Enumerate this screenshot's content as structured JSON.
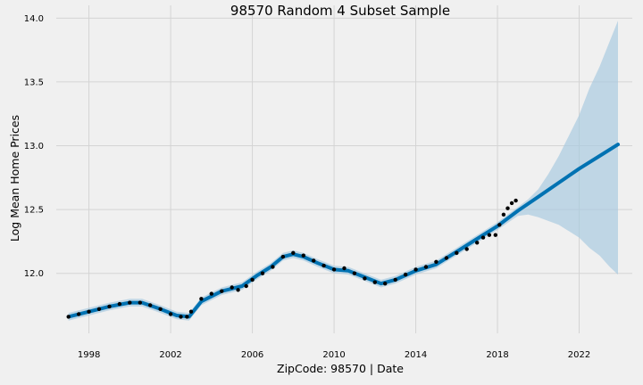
{
  "chart_data": {
    "type": "line",
    "title": "98570 Random 4 Subset Sample",
    "xlabel": "ZipCode: 98570 | Date",
    "ylabel": "Log Mean Home Prices",
    "xlim": [
      1996.4,
      2024.6
    ],
    "ylim": [
      11.53,
      14.1
    ],
    "x_ticks": [
      {
        "label": "1998",
        "value": 1998
      },
      {
        "label": "2002",
        "value": 2002
      },
      {
        "label": "2006",
        "value": 2006
      },
      {
        "label": "2010",
        "value": 2010
      },
      {
        "label": "2014",
        "value": 2014
      },
      {
        "label": "2018",
        "value": 2018
      },
      {
        "label": "2022",
        "value": 2022
      }
    ],
    "y_ticks": [
      {
        "label": "12.0",
        "value": 12.0
      },
      {
        "label": "12.5",
        "value": 12.5
      },
      {
        "label": "13.0",
        "value": 13.0
      },
      {
        "label": "13.5",
        "value": 13.5
      },
      {
        "label": "14.0",
        "value": 14.0
      }
    ],
    "grid": true,
    "colors": {
      "forecast": "#0072b2",
      "interval": "#a9cbe0",
      "observed": "#000000",
      "background": "#f0f0f0",
      "grid": "#d4d4d4"
    },
    "series": [
      {
        "role": "forecast",
        "x": [
          1997.0,
          1998.0,
          1999.0,
          2000.0,
          2000.6,
          2001.5,
          2002.3,
          2002.9,
          2003.5,
          2004.5,
          2005.5,
          2006.2,
          2006.9,
          2007.5,
          2008.0,
          2008.5,
          2009.2,
          2010.0,
          2010.7,
          2011.5,
          2012.3,
          2013.0,
          2014.0,
          2015.0,
          2016.0,
          2017.0,
          2018.0,
          2019.0,
          2020.0,
          2021.0,
          2022.0,
          2023.0,
          2023.9
        ],
        "y": [
          11.66,
          11.7,
          11.74,
          11.77,
          11.77,
          11.72,
          11.67,
          11.66,
          11.78,
          11.86,
          11.9,
          11.98,
          12.05,
          12.13,
          12.15,
          12.13,
          12.08,
          12.03,
          12.02,
          11.97,
          11.92,
          11.95,
          12.02,
          12.07,
          12.17,
          12.27,
          12.37,
          12.49,
          12.6,
          12.71,
          12.82,
          12.92,
          13.01
        ]
      },
      {
        "role": "uncertainty-upper",
        "x": [
          1997.0,
          1998.0,
          1999.0,
          2000.0,
          2000.6,
          2001.5,
          2002.3,
          2002.9,
          2003.5,
          2004.5,
          2005.5,
          2006.2,
          2006.9,
          2007.5,
          2008.0,
          2008.5,
          2009.2,
          2010.0,
          2010.7,
          2011.5,
          2012.3,
          2013.0,
          2014.0,
          2015.0,
          2016.0,
          2017.0,
          2018.0,
          2019.0,
          2019.5,
          2020.0,
          2020.5,
          2021.0,
          2021.5,
          2022.0,
          2022.5,
          2023.0,
          2023.5,
          2023.9
        ],
        "y": [
          11.69,
          11.73,
          11.77,
          11.8,
          11.8,
          11.75,
          11.7,
          11.69,
          11.81,
          11.89,
          11.93,
          12.01,
          12.08,
          12.16,
          12.18,
          12.16,
          12.11,
          12.06,
          12.05,
          12.0,
          11.95,
          11.98,
          12.05,
          12.1,
          12.2,
          12.3,
          12.4,
          12.52,
          12.58,
          12.66,
          12.78,
          12.92,
          13.08,
          13.24,
          13.45,
          13.62,
          13.82,
          13.98
        ]
      },
      {
        "role": "uncertainty-lower",
        "x": [
          1997.0,
          1998.0,
          1999.0,
          2000.0,
          2000.6,
          2001.5,
          2002.3,
          2002.9,
          2003.5,
          2004.5,
          2005.5,
          2006.2,
          2006.9,
          2007.5,
          2008.0,
          2008.5,
          2009.2,
          2010.0,
          2010.7,
          2011.5,
          2012.3,
          2013.0,
          2014.0,
          2015.0,
          2016.0,
          2017.0,
          2018.0,
          2019.0,
          2019.5,
          2020.0,
          2020.5,
          2021.0,
          2021.5,
          2022.0,
          2022.5,
          2023.0,
          2023.5,
          2023.9
        ],
        "y": [
          11.63,
          11.67,
          11.71,
          11.74,
          11.74,
          11.69,
          11.64,
          11.63,
          11.75,
          11.83,
          11.87,
          11.95,
          12.02,
          12.1,
          12.12,
          12.1,
          12.05,
          12.0,
          11.99,
          11.94,
          11.89,
          11.92,
          11.99,
          12.04,
          12.14,
          12.24,
          12.34,
          12.45,
          12.46,
          12.44,
          12.41,
          12.38,
          12.33,
          12.28,
          12.2,
          12.14,
          12.05,
          11.99
        ]
      },
      {
        "role": "observed",
        "x": [
          1997.0,
          1997.5,
          1998.0,
          1998.5,
          1999.0,
          1999.5,
          2000.0,
          2000.5,
          2001.0,
          2001.5,
          2002.0,
          2002.5,
          2002.8,
          2003.0,
          2003.5,
          2004.0,
          2004.5,
          2005.0,
          2005.3,
          2005.7,
          2006.0,
          2006.5,
          2007.0,
          2007.5,
          2008.0,
          2008.5,
          2009.0,
          2009.5,
          2010.0,
          2010.5,
          2011.0,
          2011.5,
          2012.0,
          2012.5,
          2013.0,
          2013.5,
          2014.0,
          2014.5,
          2015.0,
          2015.5,
          2016.0,
          2016.5,
          2017.0,
          2017.3,
          2017.6,
          2017.9,
          2018.1,
          2018.3,
          2018.5,
          2018.7,
          2018.9
        ],
        "y": [
          11.66,
          11.68,
          11.7,
          11.72,
          11.74,
          11.76,
          11.77,
          11.77,
          11.75,
          11.72,
          11.68,
          11.66,
          11.66,
          11.7,
          11.8,
          11.84,
          11.86,
          11.89,
          11.87,
          11.9,
          11.95,
          12.0,
          12.05,
          12.13,
          12.16,
          12.14,
          12.1,
          12.06,
          12.03,
          12.04,
          12.0,
          11.96,
          11.93,
          11.92,
          11.95,
          11.99,
          12.03,
          12.05,
          12.09,
          12.12,
          12.16,
          12.19,
          12.24,
          12.28,
          12.3,
          12.3,
          12.38,
          12.46,
          12.51,
          12.55,
          12.57
        ]
      }
    ]
  }
}
